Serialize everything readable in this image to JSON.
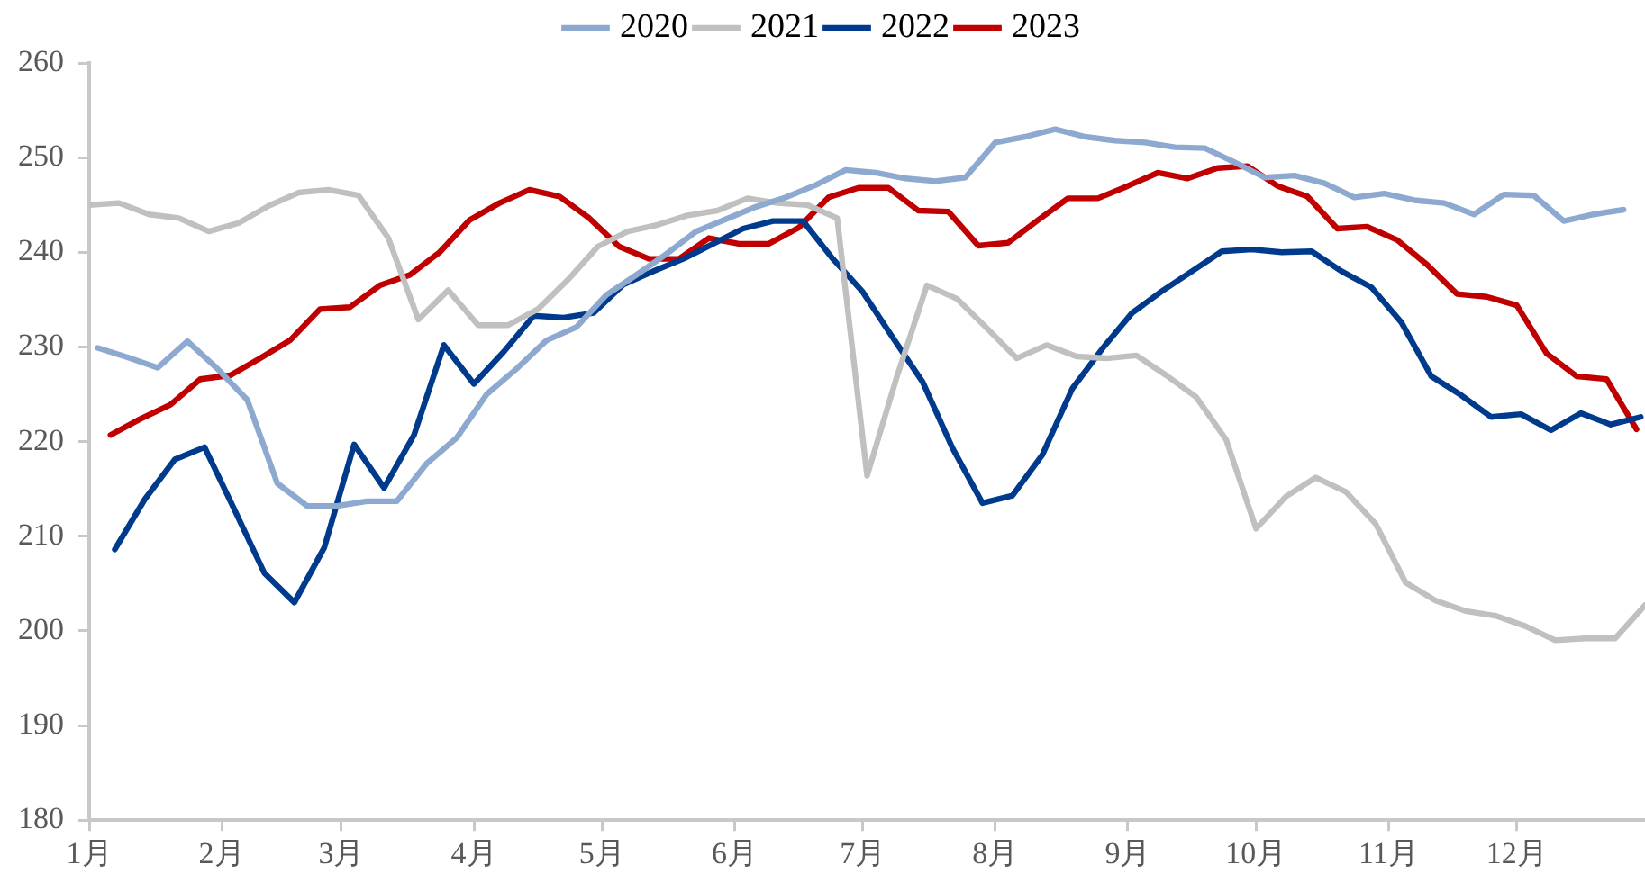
{
  "chart_data": {
    "type": "line",
    "legend": "top",
    "grid": false,
    "marker": "none",
    "line_style": "solid",
    "xlim": [
      "--01-01",
      "--12-31"
    ],
    "xticks": [
      {
        "value": "--01-01",
        "label": "1月"
      },
      {
        "value": "--02-01",
        "label": "2月"
      },
      {
        "value": "--03-01",
        "label": "3月"
      },
      {
        "value": "--04-01",
        "label": "4月"
      },
      {
        "value": "--05-01",
        "label": "5月"
      },
      {
        "value": "--06-01",
        "label": "6月"
      },
      {
        "value": "--07-01",
        "label": "7月"
      },
      {
        "value": "--08-01",
        "label": "8月"
      },
      {
        "value": "--09-01",
        "label": "9月"
      },
      {
        "value": "--10-01",
        "label": "10月"
      },
      {
        "value": "--11-01",
        "label": "11月"
      },
      {
        "value": "--12-01",
        "label": "12月"
      }
    ],
    "ylim": [
      180,
      260
    ],
    "yticks": [
      180,
      190,
      200,
      210,
      220,
      230,
      240,
      250,
      260
    ],
    "series": [
      {
        "name": "2020",
        "color": "#8ea9d0",
        "x": [
          "--01-03",
          "--01-10",
          "--01-17",
          "--01-24",
          "--01-31",
          "--02-07",
          "--02-14",
          "--02-21",
          "--02-28",
          "--03-07",
          "--03-14",
          "--03-21",
          "--03-28",
          "--04-04",
          "--04-11",
          "--04-18",
          "--04-25",
          "--05-02",
          "--05-09",
          "--05-16",
          "--05-23",
          "--05-30",
          "--06-06",
          "--06-13",
          "--06-20",
          "--06-27",
          "--07-04",
          "--07-11",
          "--07-18",
          "--07-25",
          "--08-01",
          "--08-08",
          "--08-15",
          "--08-22",
          "--08-29",
          "--09-05",
          "--09-12",
          "--09-19",
          "--09-26",
          "--10-03",
          "--10-10",
          "--10-17",
          "--10-24",
          "--10-31",
          "--11-07",
          "--11-14",
          "--11-21",
          "--11-28",
          "--12-05",
          "--12-12",
          "--12-19",
          "--12-26"
        ],
        "values": [
          229.9,
          228.9,
          227.8,
          230.6,
          227.7,
          224.4,
          215.6,
          213.2,
          213.2,
          213.7,
          213.7,
          217.7,
          220.4,
          225.0,
          227.7,
          230.7,
          232.1,
          235.5,
          237.6,
          239.8,
          242.2,
          243.5,
          244.8,
          245.8,
          247.1,
          248.7,
          248.4,
          247.8,
          247.5,
          247.9,
          251.6,
          252.2,
          253.0,
          252.2,
          251.8,
          251.6,
          251.1,
          251.0,
          249.5,
          247.9,
          248.1,
          247.3,
          245.8,
          246.2,
          245.5,
          245.2,
          244.0,
          246.1,
          246.0,
          243.3,
          244.0,
          244.5
        ]
      },
      {
        "name": "2021",
        "color": "#c0c0c0",
        "x": [
          "--01-01",
          "--01-08",
          "--01-15",
          "--01-22",
          "--01-29",
          "--02-05",
          "--02-12",
          "--02-19",
          "--02-26",
          "--03-05",
          "--03-12",
          "--03-19",
          "--03-26",
          "--04-02",
          "--04-09",
          "--04-16",
          "--04-23",
          "--04-30",
          "--05-07",
          "--05-14",
          "--05-21",
          "--05-28",
          "--06-04",
          "--06-11",
          "--06-18",
          "--06-25",
          "--07-02",
          "--07-09",
          "--07-16",
          "--07-23",
          "--07-30",
          "--08-06",
          "--08-13",
          "--08-20",
          "--08-27",
          "--09-03",
          "--09-10",
          "--09-17",
          "--09-24",
          "--10-01",
          "--10-08",
          "--10-15",
          "--10-22",
          "--10-29",
          "--11-05",
          "--11-12",
          "--11-19",
          "--11-26",
          "--12-03",
          "--12-10",
          "--12-17",
          "--12-24",
          "--12-31"
        ],
        "values": [
          245.0,
          245.2,
          244.0,
          243.6,
          242.2,
          243.1,
          244.9,
          246.3,
          246.6,
          246.0,
          241.5,
          232.9,
          236.0,
          232.3,
          232.3,
          234.0,
          237.1,
          240.6,
          242.2,
          242.9,
          243.9,
          244.4,
          245.7,
          245.2,
          245.0,
          243.6,
          216.4,
          226.9,
          236.5,
          235.1,
          232.0,
          228.8,
          230.2,
          229.0,
          228.8,
          229.1,
          227.0,
          224.7,
          220.2,
          210.8,
          214.2,
          216.2,
          214.7,
          211.3,
          205.1,
          203.2,
          202.1,
          201.6,
          200.5,
          199.0,
          199.2,
          199.2,
          202.7
        ]
      },
      {
        "name": "2022",
        "color": "#003a8c",
        "x": [
          "--01-07",
          "--01-14",
          "--01-21",
          "--01-28",
          "--02-04",
          "--02-11",
          "--02-18",
          "--02-25",
          "--03-04",
          "--03-11",
          "--03-18",
          "--03-25",
          "--04-01",
          "--04-08",
          "--04-15",
          "--04-22",
          "--04-29",
          "--05-06",
          "--05-13",
          "--05-20",
          "--05-27",
          "--06-03",
          "--06-10",
          "--06-17",
          "--06-24",
          "--07-01",
          "--07-08",
          "--07-15",
          "--07-22",
          "--07-29",
          "--08-05",
          "--08-12",
          "--08-19",
          "--08-26",
          "--09-02",
          "--09-09",
          "--09-16",
          "--09-23",
          "--09-30",
          "--10-07",
          "--10-14",
          "--10-21",
          "--10-28",
          "--11-04",
          "--11-11",
          "--11-18",
          "--11-25",
          "--12-02",
          "--12-09",
          "--12-16",
          "--12-23",
          "--12-30"
        ],
        "values": [
          208.6,
          213.9,
          218.1,
          219.4,
          212.8,
          206.1,
          203.0,
          208.8,
          219.7,
          215.1,
          220.7,
          230.2,
          226.1,
          229.5,
          233.3,
          233.1,
          233.6,
          236.6,
          238.0,
          239.3,
          240.9,
          242.5,
          243.3,
          243.3,
          239.3,
          235.8,
          231.0,
          226.3,
          219.3,
          213.5,
          214.3,
          218.6,
          225.6,
          229.8,
          233.6,
          235.9,
          238.0,
          240.1,
          240.3,
          240.0,
          240.1,
          238.0,
          236.3,
          232.6,
          226.9,
          224.9,
          222.6,
          222.9,
          221.2,
          223.0,
          221.8,
          222.6
        ]
      },
      {
        "name": "2023",
        "color": "#c00000",
        "x": [
          "--01-06",
          "--01-13",
          "--01-20",
          "--01-27",
          "--02-03",
          "--02-10",
          "--02-17",
          "--02-24",
          "--03-03",
          "--03-10",
          "--03-17",
          "--03-24",
          "--03-31",
          "--04-07",
          "--04-14",
          "--04-21",
          "--04-28",
          "--05-05",
          "--05-12",
          "--05-19",
          "--05-26",
          "--06-02",
          "--06-09",
          "--06-16",
          "--06-23",
          "--06-30",
          "--07-07",
          "--07-14",
          "--07-21",
          "--07-28",
          "--08-04",
          "--08-11",
          "--08-18",
          "--08-25",
          "--09-01",
          "--09-08",
          "--09-15",
          "--09-22",
          "--09-29",
          "--10-06",
          "--10-13",
          "--10-20",
          "--10-27",
          "--11-03",
          "--11-10",
          "--11-17",
          "--11-24",
          "--12-01",
          "--12-08",
          "--12-15",
          "--12-22",
          "--12-29"
        ],
        "values": [
          220.7,
          222.4,
          223.9,
          226.6,
          227.0,
          228.8,
          230.7,
          234.0,
          234.2,
          236.5,
          237.6,
          240.0,
          243.4,
          245.2,
          246.6,
          245.9,
          243.6,
          240.6,
          239.3,
          239.3,
          241.5,
          240.9,
          240.9,
          242.6,
          245.8,
          246.8,
          246.8,
          244.4,
          244.3,
          240.7,
          241.0,
          243.4,
          245.7,
          245.7,
          247.0,
          248.4,
          247.8,
          248.9,
          249.1,
          247.0,
          245.9,
          242.5,
          242.7,
          241.3,
          238.7,
          235.6,
          235.3,
          234.4,
          229.3,
          226.9,
          226.6,
          221.3
        ]
      }
    ]
  }
}
